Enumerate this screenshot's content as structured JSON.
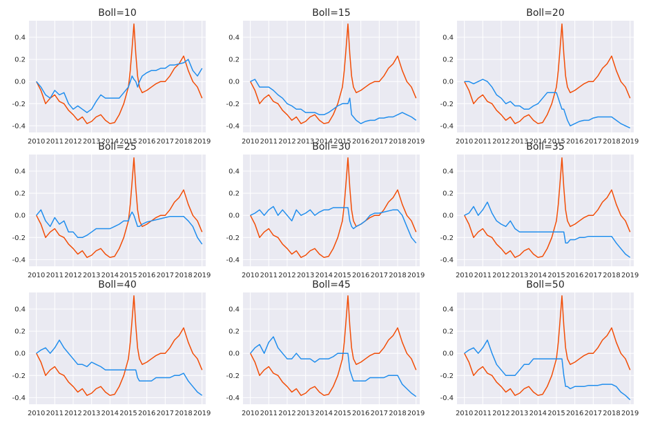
{
  "chart_data": {
    "type": "line",
    "colors": {
      "strategy": "#1f8ded",
      "benchmark": "#f24c05",
      "background": "#eaeaf2",
      "grid": "#ffffff"
    },
    "x_ticks": [
      "2010",
      "2011",
      "2012",
      "2013",
      "2014",
      "2015",
      "2016",
      "2017",
      "2018",
      "2019"
    ],
    "y_ticks": [
      "0.4",
      "0.2",
      "0.0",
      "-0.2",
      "-0.4"
    ],
    "y_tick_values": [
      0.4,
      0.2,
      0.0,
      -0.2,
      -0.4
    ],
    "xlim": [
      2009.6,
      2019.2
    ],
    "ylim": [
      -0.46,
      0.55
    ],
    "x": [
      2010.0,
      2010.25,
      2010.5,
      2010.75,
      2011.0,
      2011.25,
      2011.5,
      2011.75,
      2012.0,
      2012.25,
      2012.5,
      2012.75,
      2013.0,
      2013.25,
      2013.5,
      2013.75,
      2014.0,
      2014.25,
      2014.5,
      2014.75,
      2015.0,
      2015.1,
      2015.2,
      2015.3,
      2015.4,
      2015.5,
      2015.6,
      2015.75,
      2016.0,
      2016.25,
      2016.5,
      2016.75,
      2017.0,
      2017.25,
      2017.5,
      2017.75,
      2018.0,
      2018.25,
      2018.5,
      2018.75,
      2019.0
    ],
    "benchmark_values": [
      0.0,
      -0.08,
      -0.2,
      -0.15,
      -0.12,
      -0.18,
      -0.2,
      -0.26,
      -0.3,
      -0.35,
      -0.32,
      -0.38,
      -0.36,
      -0.32,
      -0.3,
      -0.35,
      -0.38,
      -0.37,
      -0.3,
      -0.2,
      -0.05,
      0.1,
      0.3,
      0.52,
      0.25,
      0.05,
      -0.05,
      -0.1,
      -0.08,
      -0.05,
      -0.02,
      0.0,
      0.0,
      0.05,
      0.12,
      0.16,
      0.23,
      0.1,
      0.0,
      -0.05,
      -0.15
    ],
    "panels": [
      {
        "title": "Boll=10",
        "values": [
          0.0,
          -0.05,
          -0.12,
          -0.15,
          -0.08,
          -0.12,
          -0.1,
          -0.2,
          -0.25,
          -0.22,
          -0.25,
          -0.28,
          -0.25,
          -0.18,
          -0.12,
          -0.15,
          -0.15,
          -0.15,
          -0.15,
          -0.1,
          -0.05,
          0.0,
          0.05,
          0.02,
          0.0,
          -0.05,
          0.0,
          0.05,
          0.08,
          0.1,
          0.1,
          0.12,
          0.12,
          0.15,
          0.15,
          0.16,
          0.17,
          0.2,
          0.1,
          0.05,
          0.12
        ]
      },
      {
        "title": "Boll=15",
        "values": [
          0.0,
          0.02,
          -0.05,
          -0.05,
          -0.05,
          -0.08,
          -0.12,
          -0.15,
          -0.2,
          -0.22,
          -0.25,
          -0.25,
          -0.28,
          -0.28,
          -0.28,
          -0.3,
          -0.3,
          -0.28,
          -0.25,
          -0.22,
          -0.2,
          -0.2,
          -0.2,
          -0.2,
          -0.15,
          -0.3,
          -0.32,
          -0.35,
          -0.38,
          -0.36,
          -0.35,
          -0.35,
          -0.33,
          -0.33,
          -0.32,
          -0.32,
          -0.3,
          -0.28,
          -0.3,
          -0.32,
          -0.35
        ]
      },
      {
        "title": "Boll=20",
        "values": [
          0.0,
          0.0,
          -0.02,
          0.0,
          0.02,
          0.0,
          -0.05,
          -0.12,
          -0.15,
          -0.2,
          -0.18,
          -0.22,
          -0.22,
          -0.25,
          -0.25,
          -0.22,
          -0.2,
          -0.15,
          -0.1,
          -0.1,
          -0.1,
          -0.15,
          -0.2,
          -0.25,
          -0.25,
          -0.3,
          -0.35,
          -0.4,
          -0.38,
          -0.36,
          -0.35,
          -0.35,
          -0.33,
          -0.32,
          -0.32,
          -0.32,
          -0.32,
          -0.35,
          -0.38,
          -0.4,
          -0.42
        ]
      },
      {
        "title": "Boll=25",
        "values": [
          0.0,
          0.05,
          -0.05,
          -0.1,
          -0.02,
          -0.08,
          -0.05,
          -0.15,
          -0.15,
          -0.2,
          -0.2,
          -0.18,
          -0.15,
          -0.12,
          -0.12,
          -0.12,
          -0.12,
          -0.1,
          -0.08,
          -0.05,
          -0.05,
          0.0,
          0.03,
          0.0,
          -0.05,
          -0.1,
          -0.1,
          -0.08,
          -0.06,
          -0.05,
          -0.04,
          -0.03,
          -0.02,
          -0.01,
          -0.01,
          -0.01,
          -0.01,
          -0.05,
          -0.1,
          -0.2,
          -0.26
        ]
      },
      {
        "title": "Boll=30",
        "values": [
          0.0,
          0.02,
          0.05,
          0.0,
          0.05,
          0.08,
          0.0,
          0.05,
          0.0,
          -0.05,
          0.05,
          0.0,
          0.02,
          0.05,
          0.0,
          0.03,
          0.05,
          0.05,
          0.07,
          0.07,
          0.07,
          0.07,
          0.07,
          0.07,
          -0.05,
          -0.1,
          -0.12,
          -0.1,
          -0.08,
          -0.05,
          0.0,
          0.02,
          0.02,
          0.03,
          0.04,
          0.05,
          0.05,
          0.0,
          -0.1,
          -0.2,
          -0.25
        ]
      },
      {
        "title": "Boll=35",
        "values": [
          0.0,
          0.02,
          0.08,
          0.0,
          0.05,
          0.12,
          0.02,
          -0.05,
          -0.08,
          -0.1,
          -0.05,
          -0.12,
          -0.15,
          -0.15,
          -0.15,
          -0.15,
          -0.15,
          -0.15,
          -0.15,
          -0.15,
          -0.15,
          -0.15,
          -0.15,
          -0.15,
          -0.15,
          -0.25,
          -0.25,
          -0.22,
          -0.22,
          -0.2,
          -0.2,
          -0.19,
          -0.19,
          -0.19,
          -0.19,
          -0.19,
          -0.19,
          -0.25,
          -0.3,
          -0.35,
          -0.38
        ]
      },
      {
        "title": "Boll=40",
        "values": [
          0.0,
          0.03,
          0.05,
          0.0,
          0.05,
          0.12,
          0.05,
          0.0,
          -0.05,
          -0.1,
          -0.1,
          -0.12,
          -0.08,
          -0.1,
          -0.12,
          -0.15,
          -0.15,
          -0.15,
          -0.15,
          -0.15,
          -0.15,
          -0.15,
          -0.15,
          -0.15,
          -0.15,
          -0.22,
          -0.25,
          -0.25,
          -0.25,
          -0.25,
          -0.22,
          -0.22,
          -0.22,
          -0.22,
          -0.2,
          -0.2,
          -0.18,
          -0.25,
          -0.3,
          -0.35,
          -0.38
        ]
      },
      {
        "title": "Boll=45",
        "values": [
          0.0,
          0.05,
          0.08,
          0.0,
          0.1,
          0.15,
          0.05,
          0.0,
          -0.05,
          -0.05,
          0.0,
          -0.05,
          -0.05,
          -0.05,
          -0.08,
          -0.05,
          -0.05,
          -0.05,
          -0.03,
          0.0,
          0.0,
          0.0,
          0.0,
          0.0,
          -0.15,
          -0.2,
          -0.25,
          -0.25,
          -0.25,
          -0.25,
          -0.22,
          -0.22,
          -0.22,
          -0.22,
          -0.2,
          -0.2,
          -0.2,
          -0.28,
          -0.32,
          -0.36,
          -0.39
        ]
      },
      {
        "title": "Boll=50",
        "values": [
          0.0,
          0.03,
          0.05,
          0.0,
          0.05,
          0.12,
          0.0,
          -0.1,
          -0.15,
          -0.2,
          -0.2,
          -0.2,
          -0.15,
          -0.1,
          -0.1,
          -0.05,
          -0.05,
          -0.05,
          -0.05,
          -0.05,
          -0.05,
          -0.05,
          -0.05,
          -0.05,
          -0.2,
          -0.3,
          -0.3,
          -0.32,
          -0.3,
          -0.3,
          -0.3,
          -0.29,
          -0.29,
          -0.29,
          -0.28,
          -0.28,
          -0.28,
          -0.3,
          -0.35,
          -0.38,
          -0.42
        ]
      }
    ]
  }
}
